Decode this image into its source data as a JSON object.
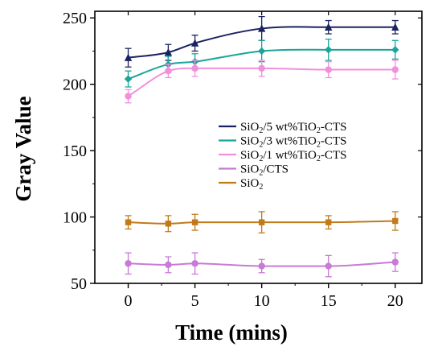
{
  "chart_data": {
    "type": "line",
    "title": "",
    "xlabel": "Time (mins)",
    "ylabel": "Gray Value",
    "xlim": [
      -2.5,
      22
    ],
    "ylim": [
      50,
      255
    ],
    "xticks": [
      0,
      5,
      10,
      15,
      20
    ],
    "yticks": [
      50,
      100,
      150,
      200,
      250
    ],
    "x": [
      0,
      3,
      5,
      10,
      15,
      20
    ],
    "legend_position": "center-right",
    "series": [
      {
        "name": "SiO2/5 wt%TiO2-CTS",
        "legend": {
          "a": "SiO",
          "s1": "2",
          "b": "/5 wt%TiO",
          "s2": "2",
          "c": "-CTS"
        },
        "color": "#1a2360",
        "marker": "triangle",
        "values": [
          220,
          224,
          231,
          242,
          243,
          243
        ],
        "errors": [
          7,
          6,
          6,
          9,
          5,
          5
        ]
      },
      {
        "name": "SiO2/3 wt%TiO2-CTS",
        "legend": {
          "a": "SiO",
          "s1": "2",
          "b": "/3 wt%TiO",
          "s2": "2",
          "c": "-CTS"
        },
        "color": "#1aa59a",
        "marker": "diamond",
        "values": [
          204,
          215,
          217,
          225,
          226,
          226
        ],
        "errors": [
          6,
          6,
          6,
          8,
          8,
          7
        ]
      },
      {
        "name": "SiO2/1 wt%TiO2-CTS",
        "legend": {
          "a": "SiO",
          "s1": "2",
          "b": "/1 wt%TiO",
          "s2": "2",
          "c": "-CTS"
        },
        "color": "#f28fdc",
        "marker": "circle",
        "values": [
          191,
          210,
          212,
          212,
          211,
          211
        ],
        "errors": [
          5,
          5,
          6,
          6,
          6,
          7
        ]
      },
      {
        "name": "SiO2/CTS",
        "legend": {
          "a": "SiO",
          "s1": "2",
          "b": "/CTS",
          "s2": "",
          "c": ""
        },
        "color": "#c77ad6",
        "marker": "circle",
        "values": [
          65,
          64,
          65,
          63,
          63,
          66
        ],
        "errors": [
          8,
          6,
          8,
          5,
          8,
          7
        ]
      },
      {
        "name": "SiO2",
        "legend": {
          "a": "SiO",
          "s1": "2",
          "b": "",
          "s2": "",
          "c": ""
        },
        "color": "#c07a1a",
        "marker": "square",
        "values": [
          96,
          95,
          96,
          96,
          96,
          97
        ],
        "errors": [
          5,
          6,
          6,
          8,
          5,
          7
        ]
      }
    ]
  }
}
